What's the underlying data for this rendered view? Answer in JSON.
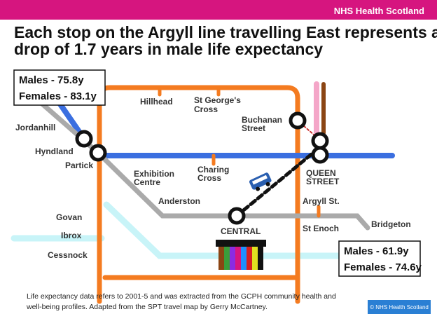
{
  "header": {
    "brand": "NHS Health Scotland"
  },
  "title": {
    "lines": [
      "Each stop on the Argyll line travelling East represents a",
      "drop of 1.7 years in male life expectancy"
    ]
  },
  "start_box": {
    "lines": [
      "Males - 75.8y",
      "Females - 83.1y"
    ]
  },
  "end_box": {
    "lines": [
      "Males - 61.9y",
      "Females - 74.6y"
    ]
  },
  "stations": [
    {
      "lines": [
        "Hillhead"
      ]
    },
    {
      "lines": [
        "St George's",
        "Cross"
      ]
    },
    {
      "lines": [
        "Jordanhill"
      ]
    },
    {
      "lines": [
        "Hyndland"
      ]
    },
    {
      "lines": [
        "Partick"
      ]
    },
    {
      "lines": [
        "Exhibition",
        "Centre"
      ]
    },
    {
      "lines": [
        "Charing",
        "Cross"
      ]
    },
    {
      "lines": [
        "Buchanan",
        "Street"
      ]
    },
    {
      "lines": [
        "QUEEN",
        "STREET"
      ]
    },
    {
      "lines": [
        "Anderston"
      ]
    },
    {
      "lines": [
        "Argyll St."
      ]
    },
    {
      "lines": [
        "Govan"
      ]
    },
    {
      "lines": [
        "Ibrox"
      ]
    },
    {
      "lines": [
        "Cessnock"
      ]
    },
    {
      "lines": [
        "CENTRAL"
      ]
    },
    {
      "lines": [
        "St Enoch"
      ]
    },
    {
      "lines": [
        "Bridgeton"
      ]
    }
  ],
  "footnote": {
    "lines": [
      "Life expectancy data refers to 2001-5 and was extracted from the GCPH community health and",
      "well-being profiles. Adapted from the SPT travel map by Gerry McCartney."
    ]
  },
  "copyright": "© NHS Health Scotland"
}
